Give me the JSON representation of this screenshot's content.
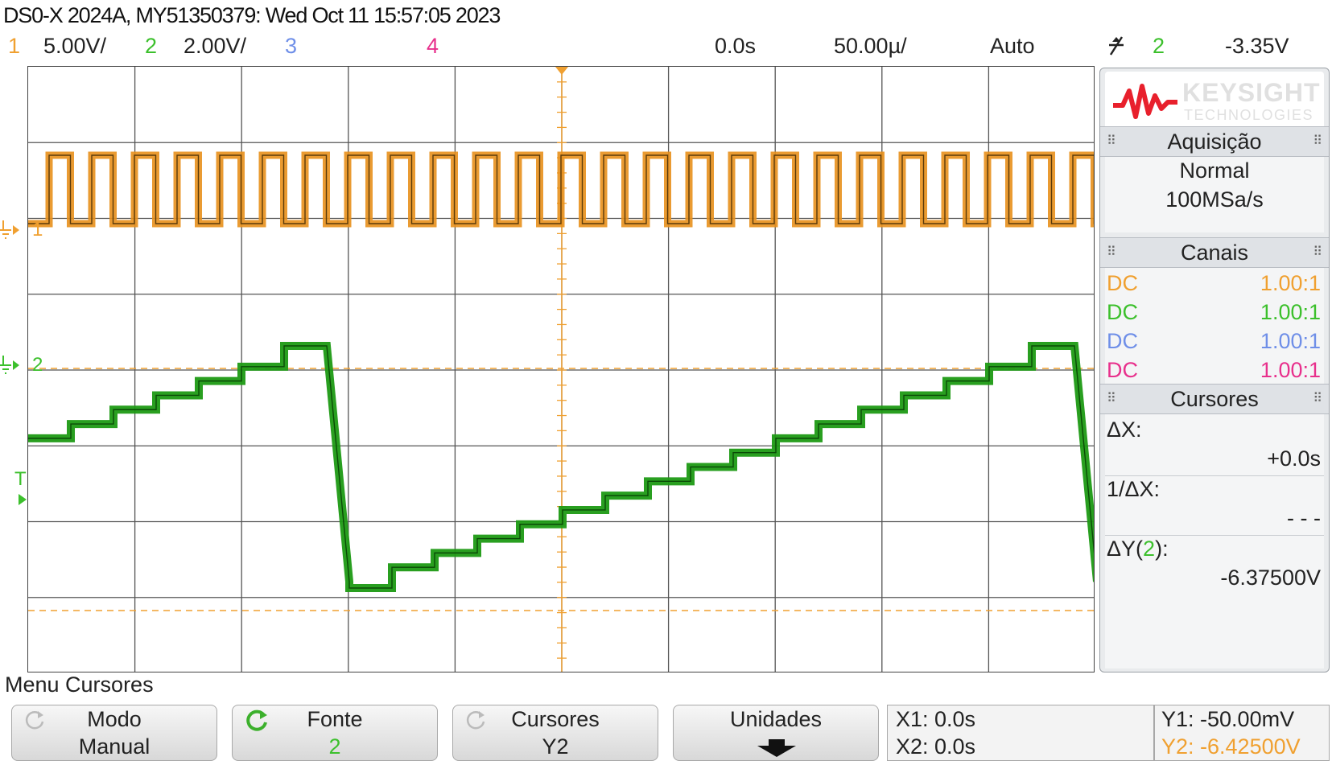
{
  "header": {
    "title": "DS0-X 2024A, MY51350379: Wed Oct 11 15:57:05 2023"
  },
  "statusbar": {
    "ch1_num": "1",
    "ch1_scale": "5.00V/",
    "ch2_num": "2",
    "ch2_scale": "2.00V/",
    "ch3_num": "3",
    "ch4_num": "4",
    "time_delay": "0.0s",
    "time_scale": "50.00µ/",
    "trigger_mode": "Auto",
    "trigger_source": "2",
    "trigger_level": "-3.35V"
  },
  "markers": {
    "ch1_label": "1",
    "ch2_label": "2",
    "trigger_label": "T"
  },
  "panel": {
    "brand": "KEYSIGHT",
    "brand_sub": "TECHNOLOGIES",
    "acq_header": "Aquisição",
    "acq_mode": "Normal",
    "acq_rate": "100MSa/s",
    "channels_header": "Canais",
    "channels": [
      {
        "coupling": "DC",
        "probe": "1.00:1",
        "color": "#f0a030"
      },
      {
        "coupling": "DC",
        "probe": "1.00:1",
        "color": "#3cc02c"
      },
      {
        "coupling": "DC",
        "probe": "1.00:1",
        "color": "#6f8fe8"
      },
      {
        "coupling": "DC",
        "probe": "1.00:1",
        "color": "#e8308c"
      }
    ],
    "cursors_header": "Cursores",
    "dx_label": "ΔX:",
    "dx_value": "+0.0s",
    "inv_dx_label": "1/ΔX:",
    "inv_dx_value": "- - -",
    "dy_label_pre": "ΔY(",
    "dy_label_src": "2",
    "dy_label_post": "):",
    "dy_value": "-6.37500V"
  },
  "menu": {
    "title": "Menu Cursores",
    "softkeys": [
      {
        "label": "Modo",
        "value": "Manual"
      },
      {
        "label": "Fonte",
        "value": "2"
      },
      {
        "label": "Cursores",
        "value": "Y2"
      },
      {
        "label": "Unidades",
        "value": ""
      }
    ]
  },
  "readout": {
    "x1": "X1: 0.0s",
    "x2": "X2: 0.0s",
    "y1": "Y1: -50.00mV",
    "y2": "Y2: -6.42500V"
  },
  "colors": {
    "ch1": "#f0a030",
    "ch2": "#3cc02c",
    "ch3": "#6f8fe8",
    "ch4": "#e8308c",
    "trace2": "#1e9a14",
    "trace1": "#e8901c"
  }
}
